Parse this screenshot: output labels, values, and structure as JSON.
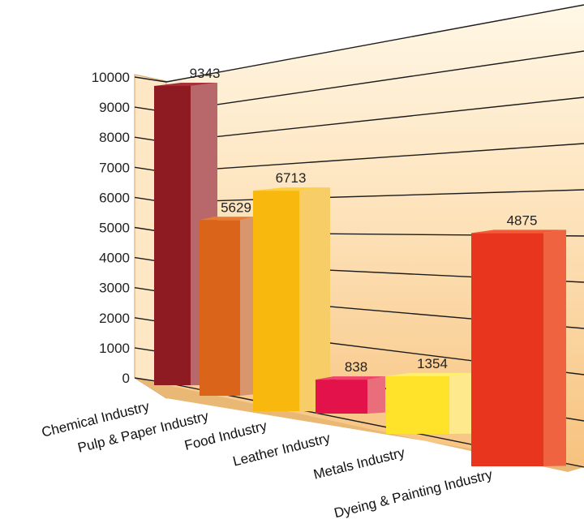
{
  "chart_data": {
    "type": "bar",
    "categories": [
      "Chemical Industry",
      "Pulp & Paper Industry",
      "Food Industry",
      "Leather Industry",
      "Metals Industry",
      "Dyeing & Painting Industry"
    ],
    "values": [
      9343,
      5629,
      6713,
      838,
      1354,
      4875
    ],
    "value_labels": [
      "9343",
      "5629",
      "6713",
      "838",
      "1354",
      "4875"
    ],
    "ylim": [
      0,
      10000
    ],
    "yticks": [
      "0",
      "1000",
      "2000",
      "3000",
      "4000",
      "5000",
      "6000",
      "7000",
      "8000",
      "9000",
      "10000"
    ],
    "title": "",
    "xlabel": "",
    "ylabel": "",
    "grid": true,
    "style": "3d",
    "colors": {
      "bars": [
        "#8e1a22",
        "#d9641a",
        "#f9b80e",
        "#e3124a",
        "#ffe22a",
        "#e8361e"
      ],
      "sides": [
        "#b8686a",
        "#d9956c",
        "#f7cd67",
        "#ea6d7c",
        "#ffe98d",
        "#f06341"
      ],
      "tops": [
        "#a7303a",
        "#e67d33",
        "#ffcf3f",
        "#f0436a",
        "#fff070",
        "#f25a38"
      ],
      "wall_light": "#fff6e0",
      "wall_dark": "#f6c585"
    }
  }
}
